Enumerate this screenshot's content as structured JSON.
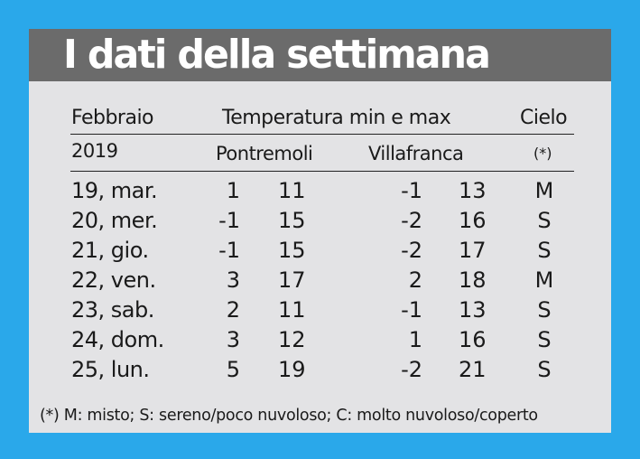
{
  "title": "I dati della settimana",
  "header": {
    "month": "Febbraio",
    "temperature": "Temperatura min e max",
    "sky": "Cielo",
    "year": "2019",
    "station1": "Pontremoli",
    "station2": "Villafranca",
    "sky_note": "(*)"
  },
  "rows": [
    {
      "date": "19, mar.",
      "p_min": "1",
      "p_max": "11",
      "v_min": "-1",
      "v_max": "13",
      "sky": "M"
    },
    {
      "date": "20, mer.",
      "p_min": "-1",
      "p_max": "15",
      "v_min": "-2",
      "v_max": "16",
      "sky": "S"
    },
    {
      "date": "21, gio.",
      "p_min": "-1",
      "p_max": "15",
      "v_min": "-2",
      "v_max": "17",
      "sky": "S"
    },
    {
      "date": "22, ven.",
      "p_min": "3",
      "p_max": "17",
      "v_min": "2",
      "v_max": "18",
      "sky": "M"
    },
    {
      "date": "23, sab.",
      "p_min": "2",
      "p_max": "11",
      "v_min": "-1",
      "v_max": "13",
      "sky": "S"
    },
    {
      "date": "24, dom.",
      "p_min": "3",
      "p_max": "12",
      "v_min": "1",
      "v_max": "16",
      "sky": "S"
    },
    {
      "date": "25, lun.",
      "p_min": "5",
      "p_max": "19",
      "v_min": "-2",
      "v_max": "21",
      "sky": "S"
    }
  ],
  "footnote": "(*) M: misto; S: sereno/poco nuvoloso; C: molto nuvoloso/coperto",
  "colors": {
    "background": "#2aa8ea",
    "card": "#e3e3e5",
    "title_bar": "#6b6b6b",
    "title_text": "#ffffff"
  }
}
